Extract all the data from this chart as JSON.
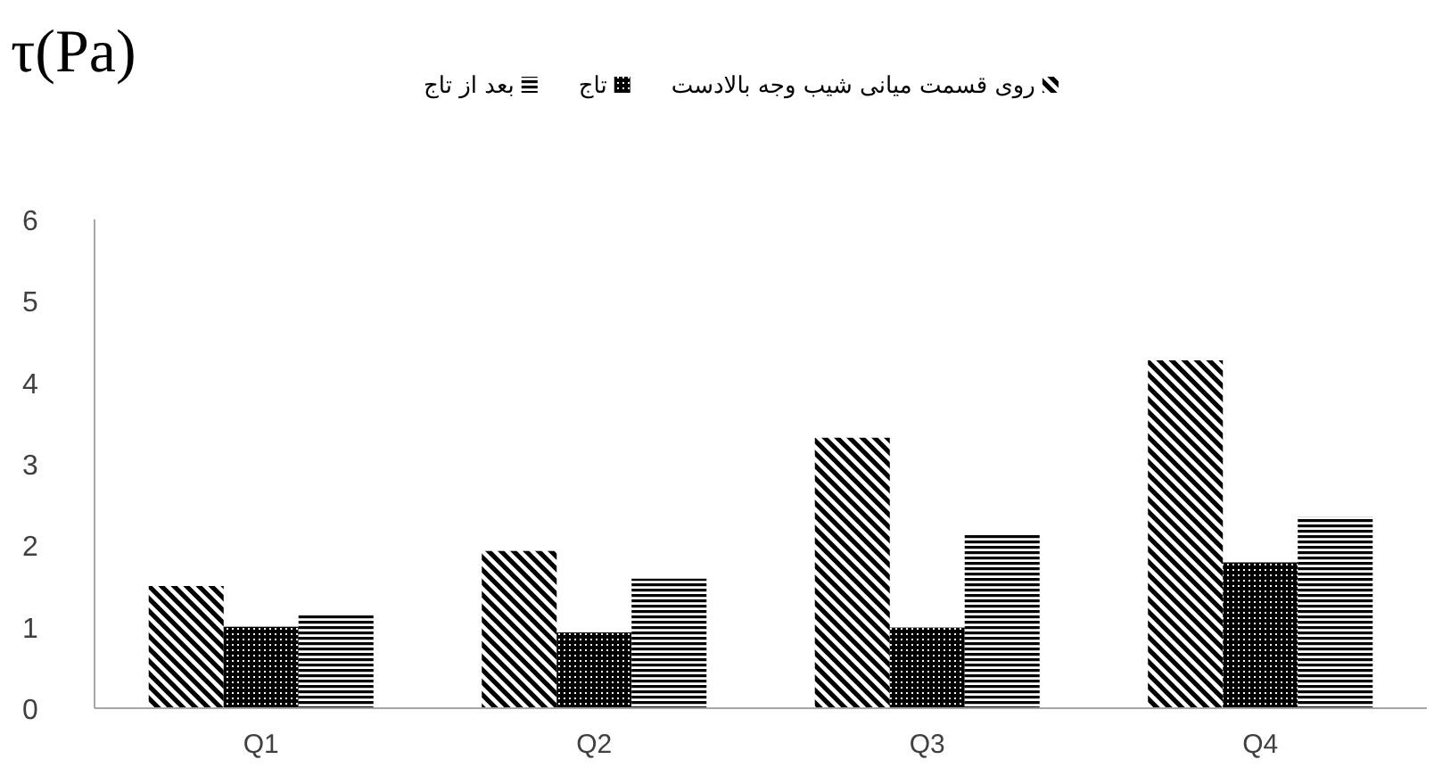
{
  "chart_data": {
    "type": "bar",
    "ylabel": "τ(Pa)",
    "categories": [
      "Q1",
      "Q2",
      "Q3",
      "Q4"
    ],
    "series": [
      {
        "name": "روی قسمت میانی شیب وجه بالادست",
        "color": "#000000",
        "values": [
          1.5,
          1.93,
          3.32,
          4.27
        ]
      },
      {
        "name": "تاج",
        "color": "#000000",
        "values": [
          1.0,
          0.93,
          0.99,
          1.79
        ]
      },
      {
        "name": "بعد از تاج",
        "color": "#000000",
        "values": [
          1.15,
          1.59,
          2.14,
          2.35
        ]
      }
    ],
    "ylim": [
      0,
      6
    ],
    "yticks": [
      0,
      1,
      2,
      3,
      4,
      5,
      6
    ],
    "legend": "top"
  }
}
